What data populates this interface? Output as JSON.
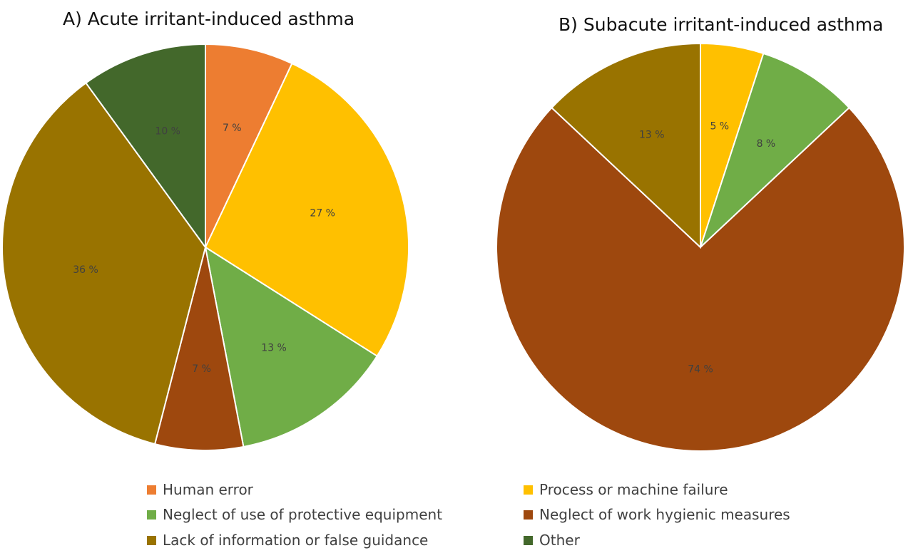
{
  "chart_data": [
    {
      "type": "pie",
      "title": "A)  Acute irritant-induced asthma",
      "categories": [
        "Human error",
        "Process or machine failure",
        "Neglect of use of protective equipment",
        "Neglect of work hygienic measures",
        "Lack of information or false guidance",
        "Other"
      ],
      "values": [
        7,
        27,
        13,
        7,
        36,
        10
      ],
      "labels": [
        "7 %",
        "27 %",
        "13 %",
        "7 %",
        "36 %",
        "10 %"
      ],
      "colors": [
        "#ED7D31",
        "#FFC000",
        "#70AD47",
        "#9E480E",
        "#997300",
        "#43682B"
      ]
    },
    {
      "type": "pie",
      "title": "B) Subacute irritant-induced asthma",
      "categories": [
        "Process or machine failure",
        "Neglect of use of protective equipment",
        "Neglect of work hygienic measures",
        "Lack of information or false guidance"
      ],
      "values": [
        5,
        8,
        74,
        13
      ],
      "labels": [
        "5 %",
        "8 %",
        "74 %",
        "13 %"
      ],
      "colors": [
        "#FFC000",
        "#70AD47",
        "#9E480E",
        "#997300"
      ]
    }
  ],
  "legend": {
    "placement": "bottom",
    "items": [
      {
        "label": "Human error",
        "color": "#ED7D31"
      },
      {
        "label": "Process or machine failure",
        "color": "#FFC000"
      },
      {
        "label": "Neglect of use of protective equipment",
        "color": "#70AD47"
      },
      {
        "label": "Neglect of work hygienic measures",
        "color": "#9E480E"
      },
      {
        "label": "Lack of information or false guidance",
        "color": "#997300"
      },
      {
        "label": "Other",
        "color": "#43682B"
      }
    ]
  }
}
